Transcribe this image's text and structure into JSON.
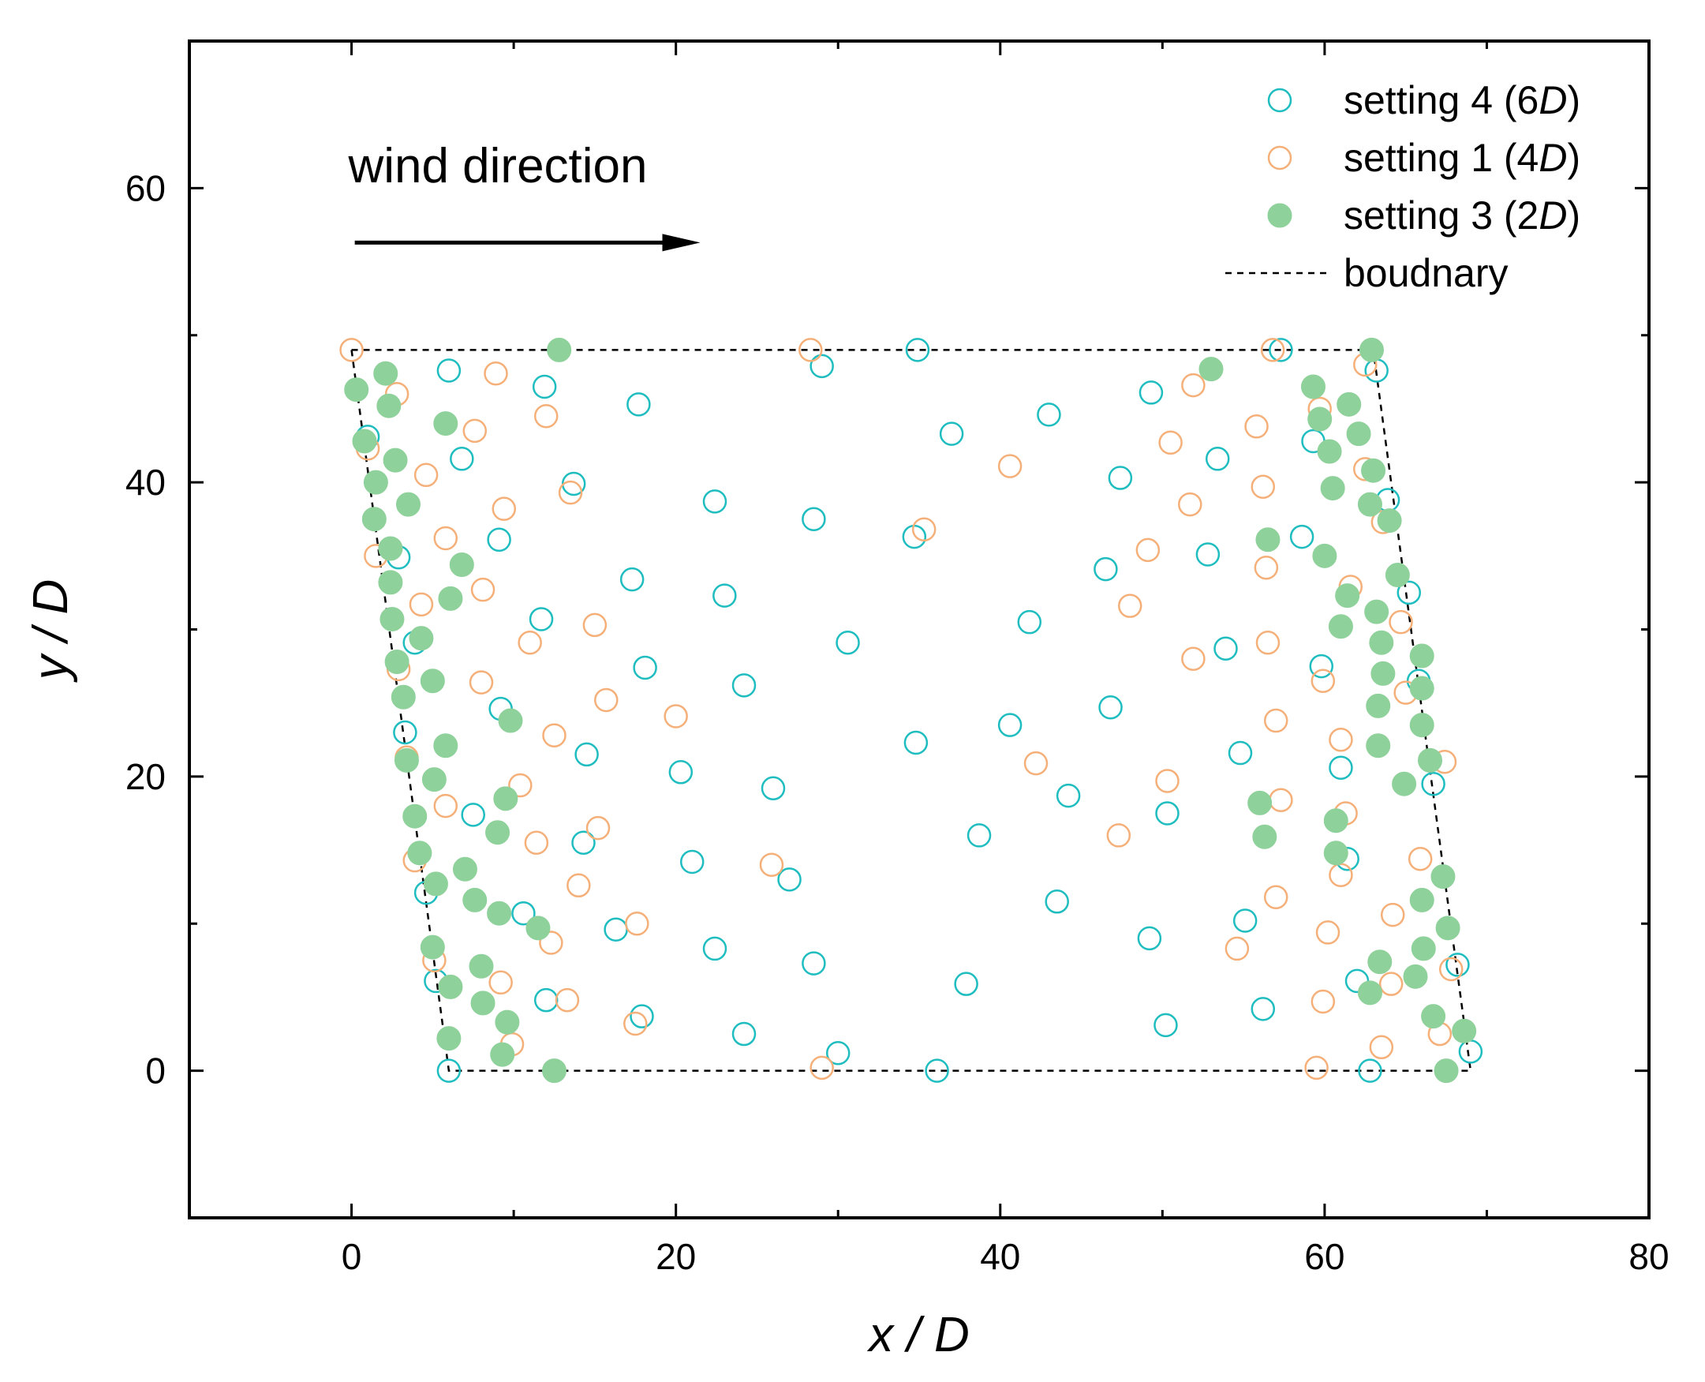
{
  "chart_data": {
    "type": "scatter",
    "xlabel": "x / D",
    "ylabel": "y / D",
    "xlim": [
      -10,
      80
    ],
    "ylim": [
      -10,
      70
    ],
    "xticks": [
      0,
      20,
      40,
      60,
      80
    ],
    "yticks": [
      0,
      20,
      40,
      60
    ],
    "grid": false,
    "legend_position": "top-right",
    "annotation": {
      "text": "wind direction",
      "arrow": "right"
    },
    "series": [
      {
        "name": "setting 4 (6D)",
        "marker": "open-circle",
        "color": "#1fbdc0",
        "points": [
          [
            6.0,
            0
          ],
          [
            36.1,
            0
          ],
          [
            62.8,
            0
          ],
          [
            69.0,
            1.3
          ],
          [
            30.0,
            1.2
          ],
          [
            50.2,
            3.1
          ],
          [
            24.2,
            2.5
          ],
          [
            56.2,
            4.2
          ],
          [
            17.9,
            3.7
          ],
          [
            12.0,
            4.8
          ],
          [
            62.0,
            6.1
          ],
          [
            5.2,
            6.1
          ],
          [
            37.9,
            5.9
          ],
          [
            68.2,
            7.2
          ],
          [
            28.5,
            7.3
          ],
          [
            22.4,
            8.3
          ],
          [
            49.2,
            9.0
          ],
          [
            16.3,
            9.6
          ],
          [
            55.1,
            10.2
          ],
          [
            10.6,
            10.7
          ],
          [
            43.5,
            11.5
          ],
          [
            4.6,
            12.1
          ],
          [
            27.0,
            13.0
          ],
          [
            21.0,
            14.2
          ],
          [
            61.4,
            14.4
          ],
          [
            38.7,
            16.0
          ],
          [
            14.3,
            15.5
          ],
          [
            50.3,
            17.5
          ],
          [
            7.5,
            17.4
          ],
          [
            44.2,
            18.7
          ],
          [
            26.0,
            19.2
          ],
          [
            66.7,
            19.5
          ],
          [
            20.3,
            20.3
          ],
          [
            61.0,
            20.6
          ],
          [
            54.8,
            21.6
          ],
          [
            14.5,
            21.5
          ],
          [
            34.8,
            22.3
          ],
          [
            40.6,
            23.5
          ],
          [
            3.3,
            23.0
          ],
          [
            46.8,
            24.7
          ],
          [
            9.2,
            24.6
          ],
          [
            24.2,
            26.2
          ],
          [
            65.8,
            26.5
          ],
          [
            18.1,
            27.4
          ],
          [
            59.8,
            27.5
          ],
          [
            30.6,
            29.1
          ],
          [
            53.9,
            28.7
          ],
          [
            3.9,
            29.1
          ],
          [
            41.8,
            30.5
          ],
          [
            11.7,
            30.7
          ],
          [
            23.0,
            32.3
          ],
          [
            65.2,
            32.5
          ],
          [
            17.3,
            33.4
          ],
          [
            46.5,
            34.1
          ],
          [
            2.9,
            34.9
          ],
          [
            52.8,
            35.1
          ],
          [
            9.1,
            36.1
          ],
          [
            34.7,
            36.3
          ],
          [
            58.6,
            36.3
          ],
          [
            28.5,
            37.5
          ],
          [
            22.4,
            38.7
          ],
          [
            63.9,
            38.8
          ],
          [
            13.7,
            39.9
          ],
          [
            47.4,
            40.3
          ],
          [
            53.4,
            41.6
          ],
          [
            6.8,
            41.6
          ],
          [
            59.3,
            42.8
          ],
          [
            1.0,
            43.1
          ],
          [
            37.0,
            43.3
          ],
          [
            43.0,
            44.6
          ],
          [
            17.7,
            45.3
          ],
          [
            49.3,
            46.1
          ],
          [
            11.9,
            46.5
          ],
          [
            63.2,
            47.6
          ],
          [
            6.0,
            47.6
          ],
          [
            29.0,
            47.9
          ],
          [
            34.9,
            49.0
          ],
          [
            57.3,
            49.0
          ]
        ]
      },
      {
        "name": "setting 1 (4D)",
        "marker": "open-circle",
        "color": "#f5b07a",
        "points": [
          [
            0,
            49.0
          ],
          [
            28.3,
            49.0
          ],
          [
            56.8,
            49.0
          ],
          [
            62.5,
            48.0
          ],
          [
            2.8,
            46.0
          ],
          [
            8.9,
            47.4
          ],
          [
            51.9,
            46.6
          ],
          [
            59.7,
            45.0
          ],
          [
            12.0,
            44.5
          ],
          [
            55.8,
            43.8
          ],
          [
            7.6,
            43.5
          ],
          [
            1.0,
            42.3
          ],
          [
            50.5,
            42.7
          ],
          [
            40.6,
            41.1
          ],
          [
            62.5,
            40.9
          ],
          [
            4.6,
            40.5
          ],
          [
            13.5,
            39.3
          ],
          [
            56.2,
            39.7
          ],
          [
            9.4,
            38.2
          ],
          [
            51.7,
            38.5
          ],
          [
            63.6,
            37.3
          ],
          [
            35.3,
            36.8
          ],
          [
            5.8,
            36.2
          ],
          [
            49.1,
            35.4
          ],
          [
            1.5,
            35.0
          ],
          [
            56.4,
            34.2
          ],
          [
            8.1,
            32.7
          ],
          [
            61.6,
            32.9
          ],
          [
            4.3,
            31.7
          ],
          [
            48.0,
            31.6
          ],
          [
            64.7,
            30.5
          ],
          [
            15.0,
            30.3
          ],
          [
            11.0,
            29.1
          ],
          [
            56.5,
            29.1
          ],
          [
            51.9,
            28.0
          ],
          [
            2.9,
            27.3
          ],
          [
            59.9,
            26.5
          ],
          [
            8.0,
            26.4
          ],
          [
            65.0,
            25.7
          ],
          [
            15.7,
            25.2
          ],
          [
            20.0,
            24.1
          ],
          [
            57.0,
            23.8
          ],
          [
            12.5,
            22.8
          ],
          [
            61.0,
            22.5
          ],
          [
            67.4,
            21.0
          ],
          [
            3.4,
            21.3
          ],
          [
            42.2,
            20.9
          ],
          [
            10.4,
            19.4
          ],
          [
            50.3,
            19.7
          ],
          [
            57.3,
            18.4
          ],
          [
            5.8,
            18.0
          ],
          [
            15.2,
            16.5
          ],
          [
            47.3,
            16.0
          ],
          [
            11.4,
            15.5
          ],
          [
            61.3,
            17.5
          ],
          [
            65.9,
            14.4
          ],
          [
            25.9,
            14.0
          ],
          [
            3.9,
            14.3
          ],
          [
            61.0,
            13.3
          ],
          [
            14.0,
            12.6
          ],
          [
            57.0,
            11.8
          ],
          [
            64.2,
            10.6
          ],
          [
            17.6,
            10.0
          ],
          [
            12.3,
            8.7
          ],
          [
            60.2,
            9.4
          ],
          [
            54.6,
            8.3
          ],
          [
            5.1,
            7.5
          ],
          [
            67.8,
            6.9
          ],
          [
            9.2,
            6.0
          ],
          [
            64.1,
            5.9
          ],
          [
            13.3,
            4.8
          ],
          [
            59.9,
            4.7
          ],
          [
            17.5,
            3.2
          ],
          [
            67.1,
            2.5
          ],
          [
            9.9,
            1.8
          ],
          [
            63.5,
            1.6
          ],
          [
            29.0,
            0.2
          ],
          [
            59.5,
            0.2
          ]
        ]
      },
      {
        "name": "setting 3 (2D)",
        "marker": "filled-circle",
        "color": "#8fd19a",
        "points": [
          [
            12.8,
            49.0
          ],
          [
            62.9,
            49.0
          ],
          [
            2.1,
            47.4
          ],
          [
            53.0,
            47.7
          ],
          [
            0.3,
            46.3
          ],
          [
            59.3,
            46.5
          ],
          [
            2.3,
            45.2
          ],
          [
            61.5,
            45.3
          ],
          [
            5.8,
            44.0
          ],
          [
            59.7,
            44.3
          ],
          [
            62.1,
            43.3
          ],
          [
            0.8,
            42.8
          ],
          [
            2.7,
            41.5
          ],
          [
            60.3,
            42.1
          ],
          [
            63.0,
            40.8
          ],
          [
            1.5,
            40.0
          ],
          [
            60.5,
            39.6
          ],
          [
            3.5,
            38.5
          ],
          [
            62.8,
            38.5
          ],
          [
            1.4,
            37.5
          ],
          [
            64.0,
            37.4
          ],
          [
            56.5,
            36.1
          ],
          [
            2.4,
            35.5
          ],
          [
            60.0,
            35.0
          ],
          [
            6.8,
            34.4
          ],
          [
            64.5,
            33.7
          ],
          [
            2.4,
            33.2
          ],
          [
            61.4,
            32.3
          ],
          [
            6.1,
            32.1
          ],
          [
            63.2,
            31.2
          ],
          [
            2.5,
            30.7
          ],
          [
            61.0,
            30.2
          ],
          [
            4.3,
            29.4
          ],
          [
            63.5,
            29.1
          ],
          [
            2.8,
            27.8
          ],
          [
            63.6,
            27.0
          ],
          [
            66.0,
            28.2
          ],
          [
            5.0,
            26.5
          ],
          [
            66.0,
            26.0
          ],
          [
            3.2,
            25.4
          ],
          [
            63.3,
            24.8
          ],
          [
            9.8,
            23.8
          ],
          [
            66.0,
            23.5
          ],
          [
            5.8,
            22.1
          ],
          [
            63.3,
            22.1
          ],
          [
            3.4,
            21.1
          ],
          [
            66.5,
            21.1
          ],
          [
            5.1,
            19.8
          ],
          [
            64.9,
            19.5
          ],
          [
            9.5,
            18.5
          ],
          [
            56.0,
            18.2
          ],
          [
            3.9,
            17.3
          ],
          [
            60.7,
            17.0
          ],
          [
            9.0,
            16.2
          ],
          [
            56.3,
            15.9
          ],
          [
            4.2,
            14.8
          ],
          [
            60.7,
            14.8
          ],
          [
            7.0,
            13.7
          ],
          [
            67.3,
            13.2
          ],
          [
            5.2,
            12.7
          ],
          [
            66.0,
            11.6
          ],
          [
            7.6,
            11.6
          ],
          [
            9.1,
            10.7
          ],
          [
            11.5,
            9.7
          ],
          [
            67.6,
            9.7
          ],
          [
            5.0,
            8.4
          ],
          [
            66.1,
            8.3
          ],
          [
            63.4,
            7.4
          ],
          [
            8.0,
            7.1
          ],
          [
            65.6,
            6.4
          ],
          [
            6.1,
            5.7
          ],
          [
            62.8,
            5.3
          ],
          [
            8.1,
            4.6
          ],
          [
            66.7,
            3.7
          ],
          [
            9.6,
            3.3
          ],
          [
            6.0,
            2.2
          ],
          [
            68.6,
            2.7
          ],
          [
            9.3,
            1.1
          ],
          [
            12.5,
            0
          ],
          [
            67.5,
            0
          ]
        ]
      },
      {
        "name": "boudnary",
        "marker": "dashed-line",
        "color": "#000000",
        "points": [
          [
            0,
            49
          ],
          [
            63,
            49
          ],
          [
            69,
            0
          ],
          [
            6,
            0
          ],
          [
            0,
            49
          ]
        ]
      }
    ]
  }
}
